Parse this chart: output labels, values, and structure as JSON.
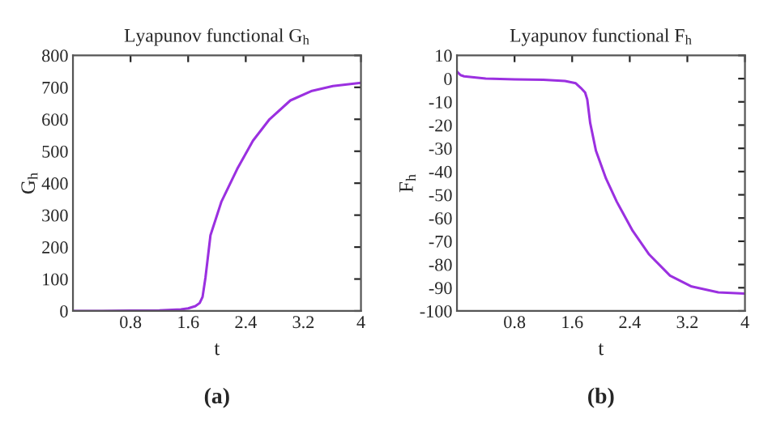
{
  "chart_data": [
    {
      "type": "line",
      "title": "Lyapunov functional G$_{h}$",
      "xlabel": "t",
      "ylabel": "G$_{h}$",
      "annotations": [
        "(a)"
      ],
      "series": [
        {
          "color": "#9b30e0",
          "x": [
            0,
            0.4,
            0.8,
            1.2,
            1.5,
            1.6,
            1.7,
            1.76,
            1.8,
            1.84,
            1.91,
            2.06,
            2.28,
            2.5,
            2.73,
            3.02,
            3.32,
            3.61,
            4
          ],
          "values": [
            0,
            0,
            1,
            2,
            5,
            8,
            15,
            25,
            44,
            104,
            237,
            341,
            444,
            533,
            600,
            659,
            689,
            704,
            714
          ]
        }
      ],
      "xlim": [
        0,
        4
      ],
      "xticks": [
        0.8,
        1.6,
        2.4,
        3.2,
        4
      ],
      "ylim": [
        0,
        800
      ],
      "yticks": [
        0,
        100,
        200,
        300,
        400,
        500,
        600,
        700,
        800
      ],
      "grid": false,
      "line_style": "solid"
    },
    {
      "type": "line",
      "title": "Lyapunov functional F$_{h}$",
      "xlabel": "t",
      "ylabel": "F$_{h}$",
      "annotations": [
        "(b)"
      ],
      "series": [
        {
          "color": "#9b30e0",
          "x": [
            0,
            0.05,
            0.1,
            0.4,
            0.8,
            1.2,
            1.5,
            1.65,
            1.72,
            1.78,
            1.81,
            1.85,
            1.93,
            2.07,
            2.22,
            2.44,
            2.67,
            2.96,
            3.26,
            3.63,
            4
          ],
          "values": [
            3,
            1.5,
            1,
            0,
            -0.3,
            -0.5,
            -1,
            -2,
            -4,
            -6,
            -9,
            -19,
            -31,
            -43,
            -53,
            -65.5,
            -75.7,
            -84.8,
            -89.5,
            -92,
            -92.5
          ]
        }
      ],
      "xlim": [
        0,
        4
      ],
      "xticks": [
        0.8,
        1.6,
        2.4,
        3.2,
        4
      ],
      "ylim": [
        -100,
        10
      ],
      "yticks": [
        -100,
        -90,
        -80,
        -70,
        -60,
        -50,
        -40,
        -30,
        -20,
        -10,
        0,
        10
      ],
      "grid": false,
      "line_style": "solid"
    }
  ]
}
